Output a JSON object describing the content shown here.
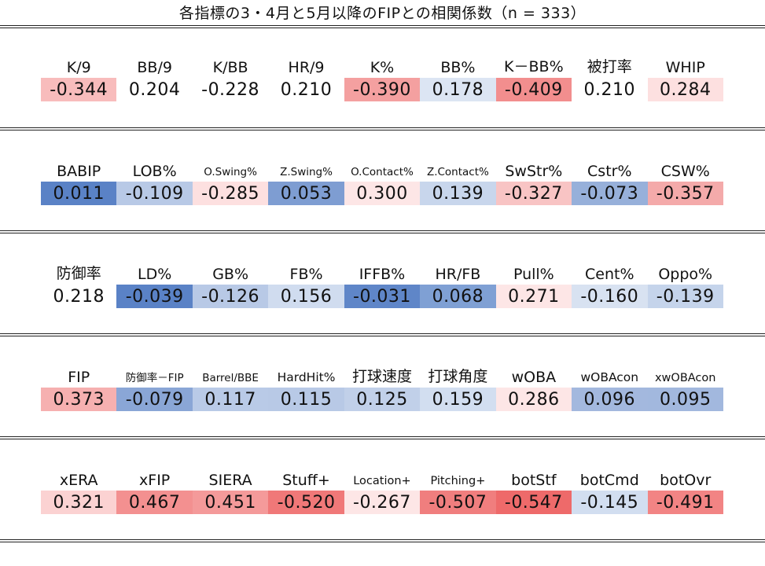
{
  "title": "各指標の3・4月と5月以降のFIPとの相関係数（n = 333）",
  "chart_data": {
    "type": "table",
    "title": "各指標の3・4月と5月以降のFIPとの相関係数（n = 333）",
    "color_scale": {
      "negative": "#f06a6a",
      "neutral": "#ffffff",
      "positive": "#4f7bc4"
    },
    "sections": [
      {
        "labels": [
          "K/9",
          "BB/9",
          "K/BB",
          "HR/9",
          "K%",
          "BB%",
          "K－BB%",
          "被打率",
          "WHIP"
        ],
        "values": [
          -0.344,
          0.204,
          -0.228,
          0.21,
          -0.39,
          0.178,
          -0.409,
          0.21,
          0.284
        ],
        "display": [
          "-0.344",
          "0.204",
          "-0.228",
          "0.210",
          "-0.390",
          "0.178",
          "-0.409",
          "0.210",
          "0.284"
        ],
        "colors": [
          "#f8bcbc",
          "#ffffff",
          "#ffffff",
          "#ffffff",
          "#f4a0a0",
          "#dce5f3",
          "#f28e8e",
          "#ffffff",
          "#fde0e0"
        ]
      },
      {
        "labels": [
          "BABIP",
          "LOB%",
          "O.Swing%",
          "Z.Swing%",
          "O.Contact%",
          "Z.Contact%",
          "SwStr%",
          "Cstr%",
          "CSW%"
        ],
        "values": [
          0.011,
          -0.109,
          -0.285,
          0.053,
          0.3,
          0.139,
          -0.327,
          -0.073,
          -0.357
        ],
        "display": [
          "0.011",
          "-0.109",
          "-0.285",
          "0.053",
          "0.300",
          "0.139",
          "-0.327",
          "-0.073",
          "-0.357"
        ],
        "colors": [
          "#5a82c6",
          "#b8c9e6",
          "#fde0e0",
          "#7e9dd2",
          "#fde6e6",
          "#c8d6ec",
          "#f8c4c4",
          "#97b0da",
          "#f4aaaa"
        ]
      },
      {
        "labels": [
          "防御率",
          "LD%",
          "GB%",
          "FB%",
          "IFFB%",
          "HR/FB",
          "Pull%",
          "Cent%",
          "Oppo%"
        ],
        "values": [
          0.218,
          -0.039,
          -0.126,
          0.156,
          -0.031,
          0.068,
          0.271,
          -0.16,
          -0.139
        ],
        "display": [
          "0.218",
          "-0.039",
          "-0.126",
          "0.156",
          "-0.031",
          "0.068",
          "0.271",
          "-0.160",
          "-0.139"
        ],
        "colors": [
          "#ffffff",
          "#5a82c6",
          "#b8c9e6",
          "#d0dcef",
          "#5f86c8",
          "#7fa0d4",
          "#fde6e6",
          "#d8e2f1",
          "#c5d4eb"
        ]
      },
      {
        "labels": [
          "FIP",
          "防御率－FIP",
          "Barrel/BBE",
          "HardHit%",
          "打球速度",
          "打球角度",
          "wOBA",
          "wOBAcon",
          "xwOBAcon"
        ],
        "values": [
          0.373,
          -0.079,
          0.117,
          0.115,
          0.125,
          0.159,
          0.286,
          0.096,
          0.095
        ],
        "display": [
          "0.373",
          "-0.079",
          "0.117",
          "0.115",
          "0.125",
          "0.159",
          "0.286",
          "0.096",
          "0.095"
        ],
        "colors": [
          "#f6b0b0",
          "#8aa6d6",
          "#b9cae7",
          "#b8c9e6",
          "#c1d0e9",
          "#d2def0",
          "#fde6e6",
          "#a3b8de",
          "#a2b8de"
        ]
      },
      {
        "labels": [
          "xERA",
          "xFIP",
          "SIERA",
          "Stuff+",
          "Location+",
          "Pitching+",
          "botStf",
          "botCmd",
          "botOvr"
        ],
        "values": [
          0.321,
          0.467,
          0.451,
          -0.52,
          -0.267,
          -0.507,
          -0.547,
          -0.145,
          -0.491
        ],
        "display": [
          "0.321",
          "0.467",
          "0.451",
          "-0.520",
          "-0.267",
          "-0.507",
          "-0.547",
          "-0.145",
          "-0.491"
        ],
        "colors": [
          "#fbd2d2",
          "#f39090",
          "#f49a9a",
          "#f07878",
          "#fde6e6",
          "#f07e7e",
          "#ee6a6a",
          "#d2def0",
          "#f28484"
        ]
      }
    ]
  }
}
